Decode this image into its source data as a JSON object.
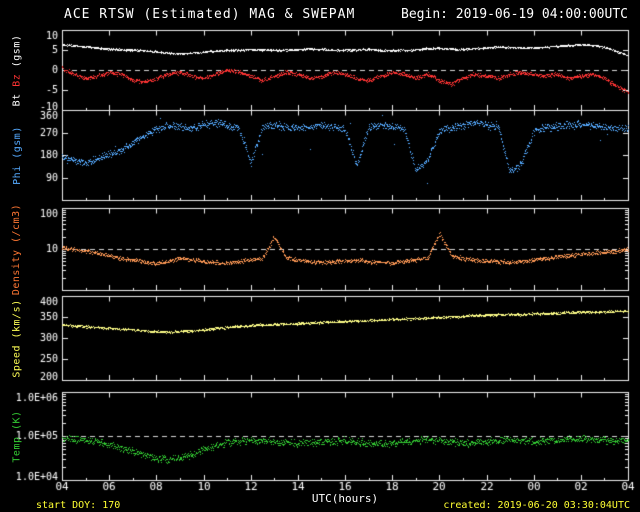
{
  "header": {
    "title": "ACE RTSW (Estimated) MAG & SWEPAM",
    "begin": "Begin: 2019-06-19 04:00:00UTC"
  },
  "footer": {
    "xlabel": "UTC(hours)",
    "start_doy": "start DOY: 170",
    "created": "created: 2019-06-20 03:30:04UTC"
  },
  "colors": {
    "background": "#000000",
    "frame": "#f0f0f0",
    "dashed_line": "#d8d8d8",
    "annotation_yellow": "#ffff33"
  },
  "chart_data": {
    "type": "scatter",
    "title": "ACE RTSW (Estimated) MAG & SWEPAM",
    "begin_time": "2019-06-19 04:00:00UTC",
    "xlabel": "UTC(hours)",
    "x_axis": {
      "min": 4,
      "max": 28,
      "anchor_step": 0.5,
      "tick_hours": [
        4,
        6,
        8,
        10,
        12,
        14,
        16,
        18,
        20,
        22,
        24,
        26,
        28
      ],
      "tick_labels": [
        "04",
        "06",
        "08",
        "10",
        "12",
        "14",
        "16",
        "18",
        "20",
        "22",
        "00",
        "02",
        "04"
      ]
    },
    "panels": [
      {
        "id": "mag",
        "ylabel_parts": [
          {
            "text": "Bt ",
            "color": "#ffffff"
          },
          {
            "text": "Bz ",
            "color": "#ff3333"
          },
          {
            "text": "(gsm)",
            "color": "#ffffff"
          }
        ],
        "scale": "linear",
        "ymin": -10,
        "ymax": 10,
        "yticks": [
          {
            "v": 10,
            "label": "10"
          },
          {
            "v": 5,
            "label": "5"
          },
          {
            "v": 0,
            "label": "0"
          },
          {
            "v": -5,
            "label": "-5"
          },
          {
            "v": -10,
            "label": "-10"
          }
        ],
        "dashed": [
          0
        ],
        "series": [
          {
            "name": "Bt",
            "unit": "nT",
            "color": "#ffffff",
            "noise": 0.3,
            "values": [
              6.3,
              6.1,
              5.9,
              5.6,
              5.3,
              5.1,
              5.0,
              4.9,
              4.6,
              4.3,
              4.1,
              4.3,
              4.6,
              4.8,
              5.0,
              5.0,
              5.2,
              5.1,
              5.0,
              5.0,
              5.2,
              5.3,
              5.2,
              5.0,
              5.0,
              5.1,
              5.2,
              5.0,
              4.9,
              5.0,
              5.2,
              5.4,
              5.5,
              5.3,
              5.2,
              5.4,
              5.6,
              5.8,
              5.7,
              5.5,
              5.6,
              5.8,
              6.0,
              6.2,
              6.4,
              6.2,
              5.8,
              4.8,
              3.6
            ]
          },
          {
            "name": "Bz",
            "unit": "nT",
            "color": "#ff3333",
            "noise": 0.6,
            "values": [
              0.5,
              -1.0,
              -2.0,
              -1.5,
              -0.5,
              -1.0,
              -2.5,
              -3.0,
              -2.0,
              -1.0,
              -0.5,
              -1.5,
              -2.0,
              -1.0,
              0.0,
              -0.5,
              -1.5,
              -2.5,
              -1.5,
              -0.5,
              -1.0,
              -2.0,
              -1.5,
              -0.5,
              -1.0,
              -2.0,
              -2.5,
              -1.5,
              -0.5,
              -1.0,
              -2.0,
              -1.0,
              -2.5,
              -3.5,
              -2.0,
              -1.0,
              -1.5,
              -2.0,
              -1.0,
              -0.5,
              -1.0,
              -1.5,
              -1.0,
              -2.0,
              -1.5,
              -1.0,
              -2.0,
              -4.0,
              -5.5
            ]
          }
        ]
      },
      {
        "id": "phi",
        "ylabel_parts": [
          {
            "text": "Phi (gsm)",
            "color": "#55aaff"
          }
        ],
        "scale": "linear",
        "ymin": 0,
        "ymax": 360,
        "yticks": [
          {
            "v": 360,
            "label": "360"
          },
          {
            "v": 270,
            "label": "270"
          },
          {
            "v": 180,
            "label": "180"
          },
          {
            "v": 90,
            "label": "90"
          }
        ],
        "dashed": [],
        "series": [
          {
            "name": "Phi",
            "unit": "deg",
            "color": "#55aaff",
            "noise": 18,
            "scatter_extra": 100,
            "values": [
              170,
              160,
              150,
              165,
              185,
              200,
              230,
              260,
              285,
              300,
              295,
              288,
              300,
              310,
              300,
              290,
              150,
              295,
              300,
              290,
              285,
              295,
              300,
              290,
              285,
              140,
              290,
              300,
              295,
              285,
              120,
              160,
              280,
              290,
              300,
              310,
              300,
              290,
              110,
              150,
              280,
              290,
              295,
              300,
              305,
              300,
              295,
              290,
              285
            ]
          }
        ]
      },
      {
        "id": "density",
        "ylabel_parts": [
          {
            "text": "Density (/cm3)",
            "color": "#ff7733"
          }
        ],
        "scale": "log",
        "ymin": 1,
        "ymax": 100,
        "yticks": [
          {
            "v": 100,
            "label": "100"
          },
          {
            "v": 10,
            "label": "10"
          }
        ],
        "dashed": [
          10
        ],
        "series": [
          {
            "name": "Density",
            "unit": "/cm3",
            "color": "#ff9955",
            "noise": 0.06,
            "values": [
              11,
              10,
              9,
              8,
              7,
              6,
              5.5,
              5,
              4.5,
              5,
              6,
              5.5,
              5,
              4.8,
              4.6,
              5,
              5.5,
              6,
              20,
              6,
              5.5,
              5,
              4.8,
              5,
              5.2,
              5.5,
              5,
              4.8,
              4.6,
              5,
              5.5,
              6,
              25,
              7,
              6,
              5.5,
              5.2,
              5,
              4.8,
              5,
              5.5,
              6,
              6.5,
              7,
              7.5,
              8,
              8.5,
              9,
              10
            ]
          }
        ]
      },
      {
        "id": "speed",
        "ylabel_parts": [
          {
            "text": "Speed (km/s)",
            "color": "#ffff55"
          }
        ],
        "scale": "linear",
        "ymin": 200,
        "ymax": 400,
        "yticks": [
          {
            "v": 400,
            "label": "400"
          },
          {
            "v": 350,
            "label": "350"
          },
          {
            "v": 300,
            "label": "300"
          },
          {
            "v": 250,
            "label": "250"
          },
          {
            "v": 200,
            "label": "200"
          }
        ],
        "dashed": [],
        "series": [
          {
            "name": "Speed",
            "unit": "km/s",
            "color": "#ffff88",
            "noise": 3.5,
            "values": [
              332,
              330,
              328,
              326,
              324,
              322,
              320,
              318,
              316,
              315,
              316,
              318,
              320,
              323,
              326,
              328,
              330,
              332,
              333,
              334,
              335,
              336,
              338,
              339,
              340,
              341,
              342,
              343,
              345,
              346,
              347,
              348,
              350,
              351,
              352,
              354,
              355,
              356,
              357,
              356,
              358,
              359,
              360,
              361,
              362,
              362,
              363,
              364,
              365
            ]
          }
        ]
      },
      {
        "id": "temp",
        "ylabel_parts": [
          {
            "text": "Temp (K)",
            "color": "#33cc33"
          }
        ],
        "scale": "log",
        "ymin": 10000,
        "ymax": 1000000,
        "yticks": [
          {
            "v": 1000000,
            "label": "1.0E+06"
          },
          {
            "v": 100000,
            "label": "1.0E+05"
          },
          {
            "v": 10000,
            "label": "1.0E+04"
          }
        ],
        "dashed": [
          100000
        ],
        "series": [
          {
            "name": "Temp",
            "unit": "K",
            "color": "#33cc33",
            "noise": 0.1,
            "values": [
              90000,
              85000,
              80000,
              75000,
              65000,
              55000,
              45000,
              38000,
              32000,
              30000,
              32000,
              38000,
              50000,
              60000,
              70000,
              75000,
              80000,
              78000,
              75000,
              72000,
              70000,
              72000,
              75000,
              78000,
              80000,
              75000,
              70000,
              68000,
              70000,
              75000,
              80000,
              85000,
              80000,
              75000,
              70000,
              72000,
              75000,
              80000,
              85000,
              80000,
              75000,
              78000,
              80000,
              85000,
              88000,
              85000,
              80000,
              78000,
              75000
            ]
          }
        ]
      }
    ]
  }
}
